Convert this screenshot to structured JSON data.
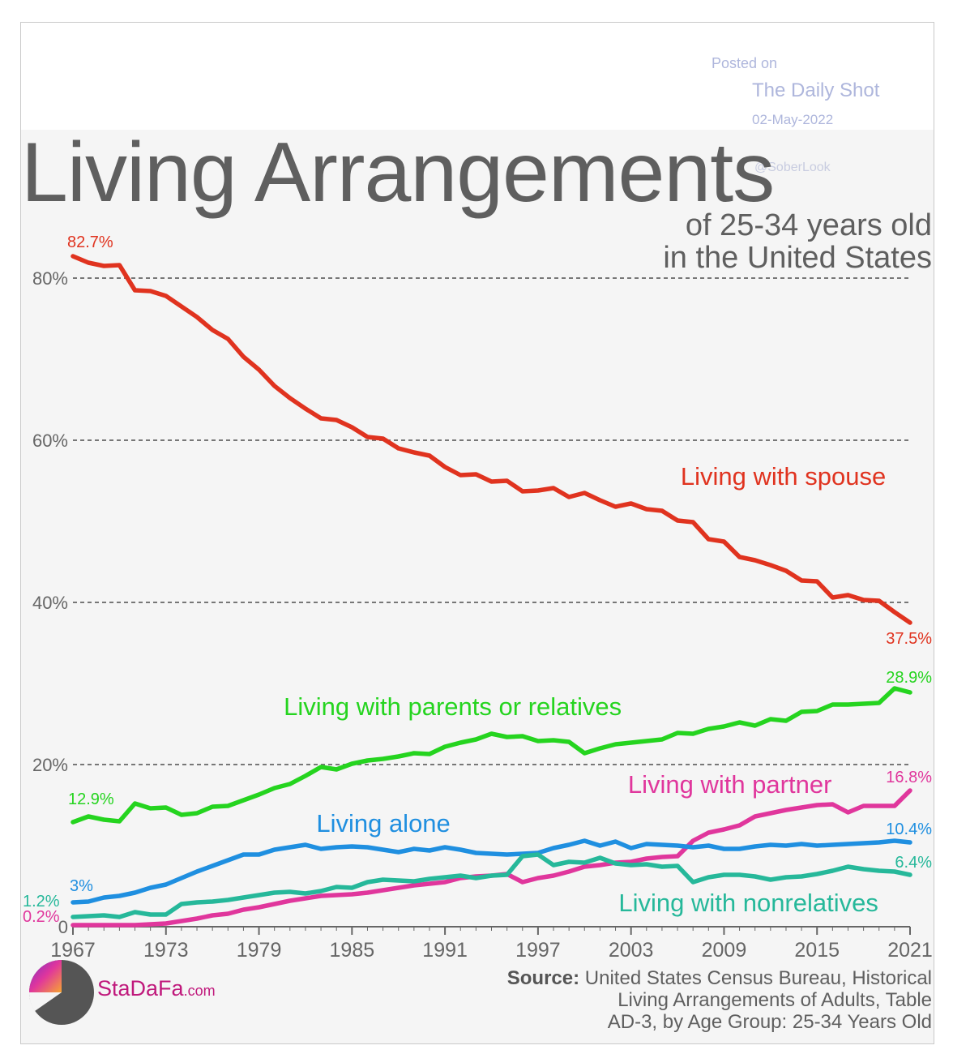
{
  "posted": {
    "label": "Posted on",
    "site": "The Daily Shot",
    "date": "02-May-2022",
    "handle": "@SoberLook"
  },
  "header": {
    "title": "Living Arrangements",
    "subtitle_line1": "of 25-34 years old",
    "subtitle_line2": "in the United States"
  },
  "footer": {
    "logo_name": "StaDaFa",
    "logo_suffix": ".com",
    "source_label": "Source:",
    "source_line1": "United States Census Bureau, Historical",
    "source_line2": "Living Arrangements of Adults, Table",
    "source_line3": "AD-3, by Age Group: 25-34 Years Old"
  },
  "chart_data": {
    "type": "line",
    "title": "Living Arrangements of 25-34 years old in the United States",
    "xlabel": "",
    "ylabel": "",
    "xlim": [
      1967,
      2021
    ],
    "ylim": [
      0,
      80
    ],
    "yticks": [
      0,
      20,
      40,
      60,
      80
    ],
    "ytick_labels": [
      "0",
      "20%",
      "40%",
      "60%",
      "80%"
    ],
    "xticks": [
      1967,
      1973,
      1979,
      1985,
      1991,
      1997,
      2003,
      2009,
      2015,
      2021
    ],
    "grid": true,
    "series": [
      {
        "name": "Living with spouse",
        "color": "#e0331f",
        "start_label": "82.7%",
        "end_label": "37.5%",
        "points": [
          [
            1967,
            82.7
          ],
          [
            1968,
            81.9
          ],
          [
            1969,
            81.5
          ],
          [
            1970,
            81.6
          ],
          [
            1971,
            78.5
          ],
          [
            1972,
            78.4
          ],
          [
            1973,
            77.8
          ],
          [
            1974,
            76.5
          ],
          [
            1975,
            75.2
          ],
          [
            1976,
            73.6
          ],
          [
            1977,
            72.5
          ],
          [
            1978,
            70.3
          ],
          [
            1979,
            68.7
          ],
          [
            1980,
            66.7
          ],
          [
            1981,
            65.2
          ],
          [
            1982,
            63.9
          ],
          [
            1983,
            62.7
          ],
          [
            1984,
            62.5
          ],
          [
            1985,
            61.6
          ],
          [
            1986,
            60.4
          ],
          [
            1987,
            60.2
          ],
          [
            1988,
            59.0
          ],
          [
            1989,
            58.5
          ],
          [
            1990,
            58.1
          ],
          [
            1991,
            56.7
          ],
          [
            1992,
            55.7
          ],
          [
            1993,
            55.8
          ],
          [
            1994,
            54.9
          ],
          [
            1995,
            55.0
          ],
          [
            1996,
            53.7
          ],
          [
            1997,
            53.8
          ],
          [
            1998,
            54.1
          ],
          [
            1999,
            53.0
          ],
          [
            2000,
            53.5
          ],
          [
            2001,
            52.6
          ],
          [
            2002,
            51.8
          ],
          [
            2003,
            52.2
          ],
          [
            2004,
            51.5
          ],
          [
            2005,
            51.3
          ],
          [
            2006,
            50.1
          ],
          [
            2007,
            49.9
          ],
          [
            2008,
            47.8
          ],
          [
            2009,
            47.5
          ],
          [
            2010,
            45.6
          ],
          [
            2011,
            45.2
          ],
          [
            2012,
            44.6
          ],
          [
            2013,
            43.9
          ],
          [
            2014,
            42.7
          ],
          [
            2015,
            42.6
          ],
          [
            2016,
            40.6
          ],
          [
            2017,
            40.9
          ],
          [
            2018,
            40.3
          ],
          [
            2019,
            40.2
          ],
          [
            2020,
            38.8
          ],
          [
            2021,
            37.5
          ]
        ]
      },
      {
        "name": "Living with parents or relatives",
        "color": "#25d41f",
        "start_label": "12.9%",
        "end_label": "28.9%",
        "points": [
          [
            1967,
            12.9
          ],
          [
            1968,
            13.6
          ],
          [
            1969,
            13.2
          ],
          [
            1970,
            13.0
          ],
          [
            1971,
            15.2
          ],
          [
            1972,
            14.6
          ],
          [
            1973,
            14.7
          ],
          [
            1974,
            13.8
          ],
          [
            1975,
            14.0
          ],
          [
            1976,
            14.8
          ],
          [
            1977,
            14.9
          ],
          [
            1978,
            15.6
          ],
          [
            1979,
            16.3
          ],
          [
            1980,
            17.1
          ],
          [
            1981,
            17.6
          ],
          [
            1982,
            18.6
          ],
          [
            1983,
            19.7
          ],
          [
            1984,
            19.4
          ],
          [
            1985,
            20.1
          ],
          [
            1986,
            20.5
          ],
          [
            1987,
            20.7
          ],
          [
            1988,
            21.0
          ],
          [
            1989,
            21.4
          ],
          [
            1990,
            21.3
          ],
          [
            1991,
            22.2
          ],
          [
            1992,
            22.7
          ],
          [
            1993,
            23.1
          ],
          [
            1994,
            23.8
          ],
          [
            1995,
            23.4
          ],
          [
            1996,
            23.5
          ],
          [
            1997,
            22.9
          ],
          [
            1998,
            23.0
          ],
          [
            1999,
            22.8
          ],
          [
            2000,
            21.4
          ],
          [
            2001,
            22.0
          ],
          [
            2002,
            22.5
          ],
          [
            2003,
            22.7
          ],
          [
            2004,
            22.9
          ],
          [
            2005,
            23.1
          ],
          [
            2006,
            23.9
          ],
          [
            2007,
            23.8
          ],
          [
            2008,
            24.4
          ],
          [
            2009,
            24.7
          ],
          [
            2010,
            25.2
          ],
          [
            2011,
            24.8
          ],
          [
            2012,
            25.6
          ],
          [
            2013,
            25.4
          ],
          [
            2014,
            26.5
          ],
          [
            2015,
            26.6
          ],
          [
            2016,
            27.4
          ],
          [
            2017,
            27.4
          ],
          [
            2018,
            27.5
          ],
          [
            2019,
            27.6
          ],
          [
            2020,
            29.4
          ],
          [
            2021,
            28.9
          ]
        ]
      },
      {
        "name": "Living with partner",
        "color": "#e0369c",
        "start_label": "0.2%",
        "end_label": "16.8%",
        "points": [
          [
            1967,
            0.2
          ],
          [
            1968,
            0.2
          ],
          [
            1969,
            0.2
          ],
          [
            1970,
            0.2
          ],
          [
            1971,
            0.2
          ],
          [
            1972,
            0.3
          ],
          [
            1973,
            0.4
          ],
          [
            1974,
            0.7
          ],
          [
            1975,
            1.0
          ],
          [
            1976,
            1.4
          ],
          [
            1977,
            1.6
          ],
          [
            1978,
            2.1
          ],
          [
            1979,
            2.4
          ],
          [
            1980,
            2.8
          ],
          [
            1981,
            3.2
          ],
          [
            1982,
            3.5
          ],
          [
            1983,
            3.8
          ],
          [
            1984,
            3.9
          ],
          [
            1985,
            4.0
          ],
          [
            1986,
            4.2
          ],
          [
            1987,
            4.5
          ],
          [
            1988,
            4.8
          ],
          [
            1989,
            5.1
          ],
          [
            1990,
            5.3
          ],
          [
            1991,
            5.5
          ],
          [
            1992,
            6.0
          ],
          [
            1993,
            6.2
          ],
          [
            1994,
            6.3
          ],
          [
            1995,
            6.5
          ],
          [
            1996,
            5.5
          ],
          [
            1997,
            6.0
          ],
          [
            1998,
            6.3
          ],
          [
            1999,
            6.8
          ],
          [
            2000,
            7.4
          ],
          [
            2001,
            7.6
          ],
          [
            2002,
            7.9
          ],
          [
            2003,
            8.0
          ],
          [
            2004,
            8.4
          ],
          [
            2005,
            8.6
          ],
          [
            2006,
            8.7
          ],
          [
            2007,
            10.6
          ],
          [
            2008,
            11.6
          ],
          [
            2009,
            12.0
          ],
          [
            2010,
            12.5
          ],
          [
            2011,
            13.6
          ],
          [
            2012,
            14.0
          ],
          [
            2013,
            14.4
          ],
          [
            2014,
            14.7
          ],
          [
            2015,
            15.0
          ],
          [
            2016,
            15.1
          ],
          [
            2017,
            14.1
          ],
          [
            2018,
            14.9
          ],
          [
            2019,
            14.9
          ],
          [
            2020,
            14.9
          ],
          [
            2021,
            16.8
          ]
        ]
      },
      {
        "name": "Living alone",
        "color": "#1f8fe0",
        "start_label": "3%",
        "end_label": "10.4%",
        "points": [
          [
            1967,
            3.0
          ],
          [
            1968,
            3.1
          ],
          [
            1969,
            3.6
          ],
          [
            1970,
            3.8
          ],
          [
            1971,
            4.2
          ],
          [
            1972,
            4.8
          ],
          [
            1973,
            5.2
          ],
          [
            1974,
            6.0
          ],
          [
            1975,
            6.8
          ],
          [
            1976,
            7.5
          ],
          [
            1977,
            8.2
          ],
          [
            1978,
            8.9
          ],
          [
            1979,
            8.9
          ],
          [
            1980,
            9.5
          ],
          [
            1981,
            9.8
          ],
          [
            1982,
            10.1
          ],
          [
            1983,
            9.6
          ],
          [
            1984,
            9.8
          ],
          [
            1985,
            9.9
          ],
          [
            1986,
            9.8
          ],
          [
            1987,
            9.5
          ],
          [
            1988,
            9.2
          ],
          [
            1989,
            9.6
          ],
          [
            1990,
            9.4
          ],
          [
            1991,
            9.8
          ],
          [
            1992,
            9.5
          ],
          [
            1993,
            9.1
          ],
          [
            1994,
            9.0
          ],
          [
            1995,
            8.9
          ],
          [
            1996,
            9.0
          ],
          [
            1997,
            9.1
          ],
          [
            1998,
            9.7
          ],
          [
            1999,
            10.1
          ],
          [
            2000,
            10.6
          ],
          [
            2001,
            10.0
          ],
          [
            2002,
            10.5
          ],
          [
            2003,
            9.7
          ],
          [
            2004,
            10.2
          ],
          [
            2005,
            10.1
          ],
          [
            2006,
            10.0
          ],
          [
            2007,
            9.8
          ],
          [
            2008,
            10.0
          ],
          [
            2009,
            9.6
          ],
          [
            2010,
            9.6
          ],
          [
            2011,
            9.9
          ],
          [
            2012,
            10.1
          ],
          [
            2013,
            10.0
          ],
          [
            2014,
            10.2
          ],
          [
            2015,
            10.0
          ],
          [
            2016,
            10.1
          ],
          [
            2017,
            10.2
          ],
          [
            2018,
            10.3
          ],
          [
            2019,
            10.4
          ],
          [
            2020,
            10.6
          ],
          [
            2021,
            10.4
          ]
        ]
      },
      {
        "name": "Living with nonrelatives",
        "color": "#26b89a",
        "start_label": "1.2%",
        "end_label": "6.4%",
        "points": [
          [
            1967,
            1.2
          ],
          [
            1968,
            1.3
          ],
          [
            1969,
            1.4
          ],
          [
            1970,
            1.2
          ],
          [
            1971,
            1.8
          ],
          [
            1972,
            1.5
          ],
          [
            1973,
            1.5
          ],
          [
            1974,
            2.8
          ],
          [
            1975,
            3.0
          ],
          [
            1976,
            3.1
          ],
          [
            1977,
            3.3
          ],
          [
            1978,
            3.6
          ],
          [
            1979,
            3.9
          ],
          [
            1980,
            4.2
          ],
          [
            1981,
            4.3
          ],
          [
            1982,
            4.1
          ],
          [
            1983,
            4.4
          ],
          [
            1984,
            4.9
          ],
          [
            1985,
            4.8
          ],
          [
            1986,
            5.5
          ],
          [
            1987,
            5.8
          ],
          [
            1988,
            5.7
          ],
          [
            1989,
            5.6
          ],
          [
            1990,
            5.9
          ],
          [
            1991,
            6.1
          ],
          [
            1992,
            6.3
          ],
          [
            1993,
            6.0
          ],
          [
            1994,
            6.3
          ],
          [
            1995,
            6.4
          ],
          [
            1996,
            8.7
          ],
          [
            1997,
            8.9
          ],
          [
            1998,
            7.6
          ],
          [
            1999,
            8.0
          ],
          [
            2000,
            7.9
          ],
          [
            2001,
            8.5
          ],
          [
            2002,
            7.8
          ],
          [
            2003,
            7.6
          ],
          [
            2004,
            7.7
          ],
          [
            2005,
            7.4
          ],
          [
            2006,
            7.5
          ],
          [
            2007,
            5.5
          ],
          [
            2008,
            6.1
          ],
          [
            2009,
            6.4
          ],
          [
            2010,
            6.4
          ],
          [
            2011,
            6.2
          ],
          [
            2012,
            5.8
          ],
          [
            2013,
            6.1
          ],
          [
            2014,
            6.2
          ],
          [
            2015,
            6.5
          ],
          [
            2016,
            6.9
          ],
          [
            2017,
            7.4
          ],
          [
            2018,
            7.1
          ],
          [
            2019,
            6.9
          ],
          [
            2020,
            6.8
          ],
          [
            2021,
            6.4
          ]
        ]
      }
    ],
    "series_labels": [
      {
        "text": "Living with spouse",
        "color": "#e0331f",
        "anchor": "start",
        "x_year": 2006.2,
        "y_value": 54.5
      },
      {
        "text": "Living with parents or relatives",
        "color": "#25d41f",
        "anchor": "start",
        "x_year": 1980.6,
        "y_value": 26.1
      },
      {
        "text": "Living with partner",
        "color": "#e0369c",
        "anchor": "start",
        "x_year": 2002.8,
        "y_value": 16.5
      },
      {
        "text": "Living alone",
        "color": "#1f8fe0",
        "anchor": "start",
        "x_year": 1982.7,
        "y_value": 11.7
      },
      {
        "text": "Living with nonrelatives",
        "color": "#26b89a",
        "anchor": "start",
        "x_year": 2002.2,
        "y_value": 1.9
      }
    ]
  }
}
